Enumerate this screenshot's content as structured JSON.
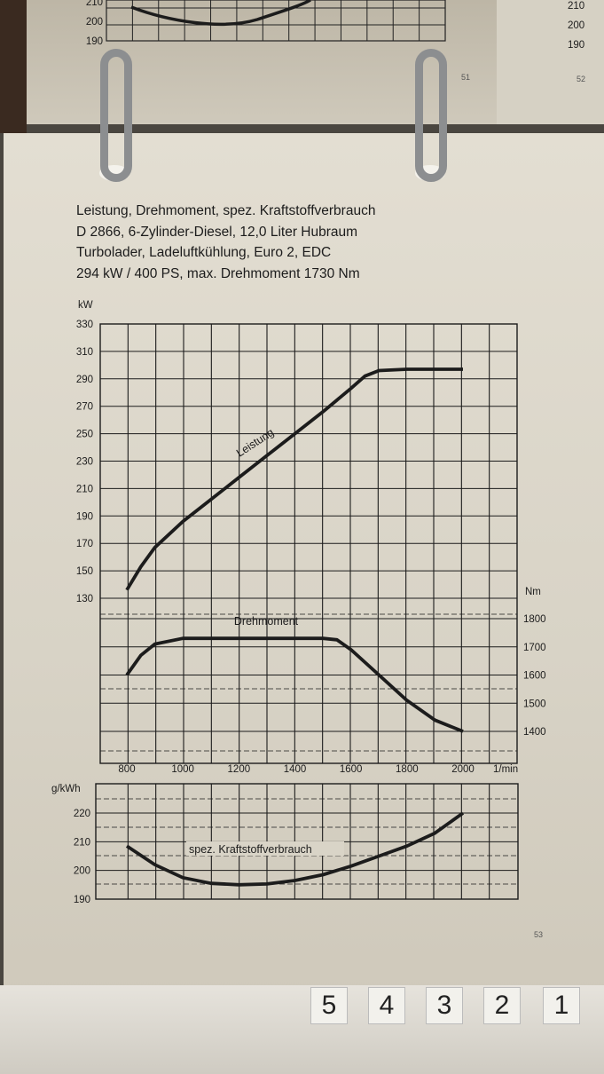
{
  "title_lines": [
    "Leistung, Drehmoment, spez. Kraftstoffverbrauch",
    "D 2866, 6-Zylinder-Diesel, 12,0 Liter Hubraum",
    "Turbolader, Ladeluftkühlung, Euro 2, EDC",
    "294 kW / 400 PS, max. Drehmoment 1730 Nm"
  ],
  "prev_page": {
    "ticks": [
      "210",
      "200",
      "190"
    ],
    "right_ticks": [
      "210",
      "200",
      "190"
    ],
    "page_numbers": [
      "51",
      "52"
    ]
  },
  "page_number": "53",
  "tabs": [
    "5",
    "4",
    "3",
    "2",
    "1"
  ],
  "chart_data": [
    {
      "type": "line",
      "name": "power",
      "ylabel": "kW",
      "ylim": [
        130,
        330
      ],
      "yticks": [
        130,
        150,
        170,
        190,
        210,
        230,
        250,
        270,
        290,
        310,
        330
      ],
      "xlim": [
        800,
        2000
      ],
      "series": [
        {
          "name": "Leistung",
          "x": [
            800,
            850,
            900,
            1000,
            1100,
            1200,
            1300,
            1400,
            1500,
            1600,
            1650,
            1700,
            1800,
            1900,
            2000
          ],
          "values": [
            136,
            153,
            167,
            186,
            202,
            218,
            234,
            250,
            266,
            283,
            292,
            296,
            297,
            297,
            297
          ]
        }
      ]
    },
    {
      "type": "line",
      "name": "torque",
      "ylabel": "Nm",
      "yticks": [
        1400,
        1500,
        1600,
        1700,
        1800
      ],
      "xlabel": "1/min",
      "xticks": [
        800,
        1000,
        1200,
        1400,
        1600,
        1800,
        2000
      ],
      "xlim": [
        800,
        2000
      ],
      "series": [
        {
          "name": "Drehmoment",
          "x": [
            800,
            850,
            900,
            1000,
            1100,
            1200,
            1300,
            1400,
            1500,
            1550,
            1600,
            1700,
            1800,
            1900,
            2000
          ],
          "values": [
            1600,
            1670,
            1710,
            1730,
            1730,
            1730,
            1730,
            1730,
            1730,
            1725,
            1690,
            1600,
            1510,
            1440,
            1400
          ]
        }
      ]
    },
    {
      "type": "line",
      "name": "consumption",
      "ylabel": "g/kWh",
      "ylim": [
        190,
        220
      ],
      "yticks": [
        190,
        200,
        210,
        220
      ],
      "xlim": [
        800,
        2000
      ],
      "series": [
        {
          "name": "spez. Kraftstoffverbrauch",
          "x": [
            800,
            900,
            1000,
            1100,
            1200,
            1300,
            1400,
            1500,
            1600,
            1700,
            1800,
            1900,
            2000
          ],
          "values": [
            208.5,
            202,
            197.5,
            195.5,
            195,
            195.3,
            196.5,
            198.5,
            201.5,
            205,
            208.5,
            213,
            220
          ]
        }
      ]
    }
  ]
}
